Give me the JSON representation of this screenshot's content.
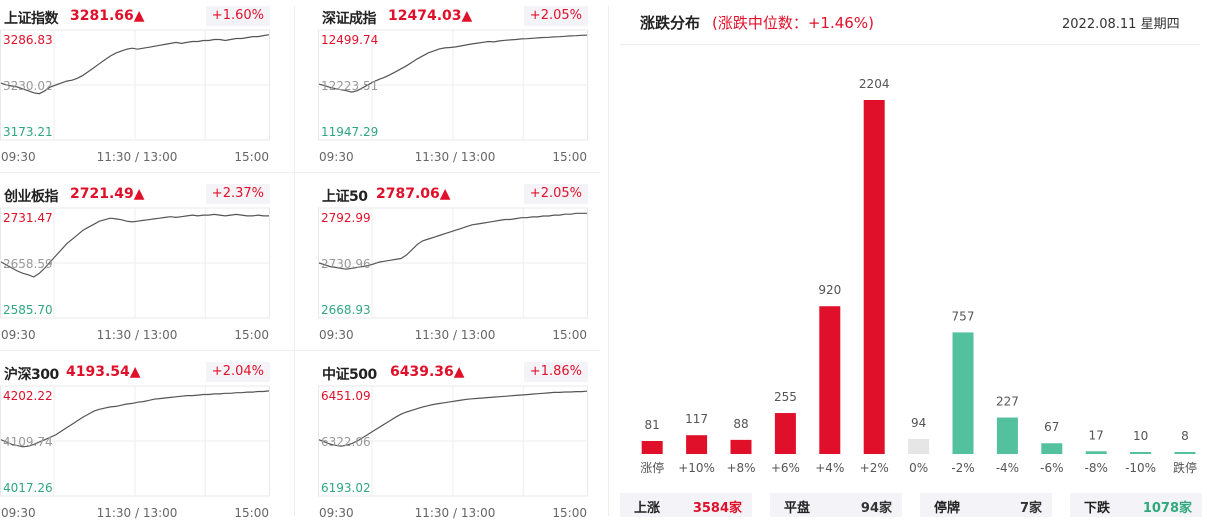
{
  "indices": [
    {
      "name": "上证指数",
      "price": "3281.66▲",
      "change": "+1.60%",
      "high": "3286.83",
      "mid": "3230.02",
      "low": "3173.21",
      "series": [
        3232,
        3230,
        3229,
        3228,
        3226,
        3224,
        3222,
        3221,
        3224,
        3228,
        3230,
        3232,
        3234,
        3235,
        3237,
        3240,
        3244,
        3248,
        3252,
        3256,
        3260,
        3263,
        3265,
        3267,
        3268,
        3267,
        3268,
        3269,
        3270,
        3271,
        3272,
        3273,
        3274,
        3273,
        3274,
        3275,
        3275,
        3276,
        3276,
        3277,
        3277,
        3276,
        3277,
        3278,
        3278,
        3279,
        3280,
        3280,
        3281,
        3282
      ]
    },
    {
      "name": "深证成指",
      "price": "12474.03▲",
      "change": "+2.05%",
      "high": "12499.74",
      "mid": "12223.51",
      "low": "11947.29",
      "series": [
        12228,
        12220,
        12212,
        12205,
        12200,
        12195,
        12188,
        12195,
        12210,
        12225,
        12240,
        12252,
        12262,
        12275,
        12290,
        12305,
        12320,
        12338,
        12355,
        12370,
        12385,
        12395,
        12405,
        12410,
        12412,
        12415,
        12420,
        12425,
        12430,
        12434,
        12438,
        12442,
        12440,
        12445,
        12448,
        12450,
        12452,
        12455,
        12456,
        12458,
        12460,
        12462,
        12463,
        12465,
        12466,
        12468,
        12470,
        12471,
        12473,
        12474
      ]
    },
    {
      "name": "创业板指",
      "price": "2721.49▲",
      "change": "+2.37%",
      "high": "2731.47",
      "mid": "2658.59",
      "low": "2585.70",
      "series": [
        2660,
        2656,
        2652,
        2648,
        2645,
        2643,
        2640,
        2645,
        2652,
        2660,
        2668,
        2676,
        2684,
        2690,
        2696,
        2702,
        2706,
        2710,
        2714,
        2716,
        2718,
        2717,
        2716,
        2714,
        2713,
        2714,
        2715,
        2716,
        2717,
        2718,
        2719,
        2720,
        2719,
        2720,
        2721,
        2722,
        2721,
        2722,
        2722,
        2723,
        2722,
        2721,
        2722,
        2723,
        2722,
        2721,
        2721,
        2722,
        2721,
        2721
      ]
    },
    {
      "name": "上证50",
      "price": "2787.06▲",
      "change": "+2.05%",
      "high": "2792.99",
      "mid": "2730.96",
      "low": "2668.93",
      "series": [
        2731,
        2729,
        2727,
        2726,
        2725,
        2724,
        2725,
        2726,
        2727,
        2728,
        2730,
        2732,
        2733,
        2734,
        2735,
        2736,
        2740,
        2746,
        2752,
        2756,
        2758,
        2760,
        2762,
        2764,
        2766,
        2768,
        2770,
        2772,
        2774,
        2775,
        2776,
        2777,
        2778,
        2779,
        2780,
        2780,
        2781,
        2782,
        2782,
        2783,
        2783,
        2784,
        2784,
        2785,
        2785,
        2786,
        2786,
        2787,
        2787,
        2787
      ]
    },
    {
      "name": "沪深300",
      "price": "4193.54▲",
      "change": "+2.04%",
      "high": "4202.22",
      "mid": "4109.74",
      "low": "4017.26",
      "series": [
        4112,
        4108,
        4104,
        4102,
        4100,
        4101,
        4104,
        4108,
        4112,
        4116,
        4120,
        4126,
        4132,
        4138,
        4144,
        4150,
        4155,
        4160,
        4163,
        4165,
        4167,
        4168,
        4170,
        4172,
        4173,
        4175,
        4176,
        4178,
        4180,
        4181,
        4182,
        4183,
        4184,
        4185,
        4186,
        4186,
        4187,
        4188,
        4188,
        4189,
        4189,
        4190,
        4190,
        4191,
        4191,
        4192,
        4192,
        4193,
        4193,
        4194
      ]
    },
    {
      "name": "中证500",
      "price": "6439.36▲",
      "change": "+1.86%",
      "high": "6451.09",
      "mid": "6322.06",
      "low": "6193.02",
      "series": [
        6325,
        6320,
        6315,
        6312,
        6310,
        6312,
        6316,
        6322,
        6330,
        6338,
        6346,
        6354,
        6362,
        6370,
        6378,
        6385,
        6390,
        6394,
        6398,
        6402,
        6405,
        6408,
        6410,
        6412,
        6414,
        6416,
        6418,
        6420,
        6421,
        6422,
        6423,
        6424,
        6425,
        6426,
        6427,
        6428,
        6429,
        6430,
        6431,
        6432,
        6433,
        6434,
        6435,
        6436,
        6436,
        6437,
        6437,
        6438,
        6438,
        6439
      ]
    }
  ],
  "time_ticks": [
    "09:30",
    "11:30 / 13:00",
    "15:00"
  ],
  "distribution": {
    "title": "涨跌分布",
    "median_text": "(涨跌中位数：+1.46%)",
    "date": "2022.08.11  星期四"
  },
  "chart_data": {
    "type": "bar",
    "categories": [
      "涨停",
      "+10%",
      "+8%",
      "+6%",
      "+4%",
      "+2%",
      "0%",
      "-2%",
      "-4%",
      "-6%",
      "-8%",
      "-10%",
      "跌停"
    ],
    "values": [
      81,
      117,
      88,
      255,
      920,
      2204,
      94,
      757,
      227,
      67,
      17,
      10,
      8
    ],
    "colors": [
      "#e0102a",
      "#e0102a",
      "#e0102a",
      "#e0102a",
      "#e0102a",
      "#e0102a",
      "#e6e6e6",
      "#54c19e",
      "#54c19e",
      "#54c19e",
      "#54c19e",
      "#54c19e",
      "#54c19e"
    ]
  },
  "stats": [
    {
      "label": "上涨",
      "value": "3584家",
      "color": "#e0102a"
    },
    {
      "label": "平盘",
      "value": "94家",
      "color": "#333333"
    },
    {
      "label": "停牌",
      "value": "7家",
      "color": "#333333"
    },
    {
      "label": "下跌",
      "value": "1078家",
      "color": "#30a77d"
    }
  ],
  "colors": {
    "up": "#e0102a",
    "down": "#30a77d",
    "flat": "#e6e6e6",
    "line": "#555555"
  }
}
